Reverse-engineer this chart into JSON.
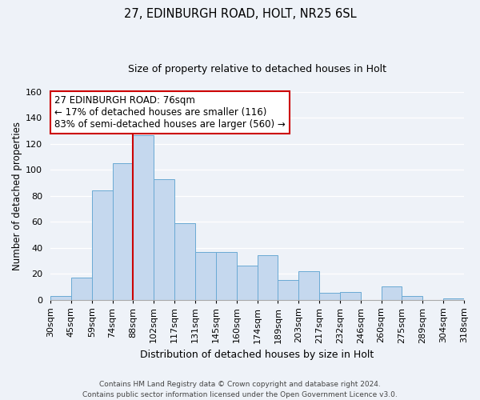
{
  "title": "27, EDINBURGH ROAD, HOLT, NR25 6SL",
  "subtitle": "Size of property relative to detached houses in Holt",
  "xlabel": "Distribution of detached houses by size in Holt",
  "ylabel": "Number of detached properties",
  "bin_labels": [
    "30sqm",
    "45sqm",
    "59sqm",
    "74sqm",
    "88sqm",
    "102sqm",
    "117sqm",
    "131sqm",
    "145sqm",
    "160sqm",
    "174sqm",
    "189sqm",
    "203sqm",
    "217sqm",
    "232sqm",
    "246sqm",
    "260sqm",
    "275sqm",
    "289sqm",
    "304sqm",
    "318sqm"
  ],
  "bar_heights": [
    3,
    17,
    84,
    105,
    127,
    93,
    59,
    37,
    37,
    26,
    34,
    15,
    22,
    5,
    6,
    0,
    10,
    3,
    0,
    1
  ],
  "bar_color": "#c5d8ee",
  "bar_edge_color": "#6aaad4",
  "vline_x_index": 3,
  "vline_color": "#cc0000",
  "annotation_title": "27 EDINBURGH ROAD: 76sqm",
  "annotation_line1": "← 17% of detached houses are smaller (116)",
  "annotation_line2": "83% of semi-detached houses are larger (560) →",
  "annotation_box_color": "#ffffff",
  "annotation_box_edge": "#cc0000",
  "ylim": [
    0,
    160
  ],
  "yticks": [
    0,
    20,
    40,
    60,
    80,
    100,
    120,
    140,
    160
  ],
  "footer1": "Contains HM Land Registry data © Crown copyright and database right 2024.",
  "footer2": "Contains public sector information licensed under the Open Government Licence v3.0.",
  "bg_color": "#eef2f8",
  "grid_color": "#ffffff",
  "title_fontsize": 10.5,
  "subtitle_fontsize": 9,
  "tick_fontsize": 8,
  "ylabel_fontsize": 8.5,
  "xlabel_fontsize": 9,
  "footer_fontsize": 6.5
}
